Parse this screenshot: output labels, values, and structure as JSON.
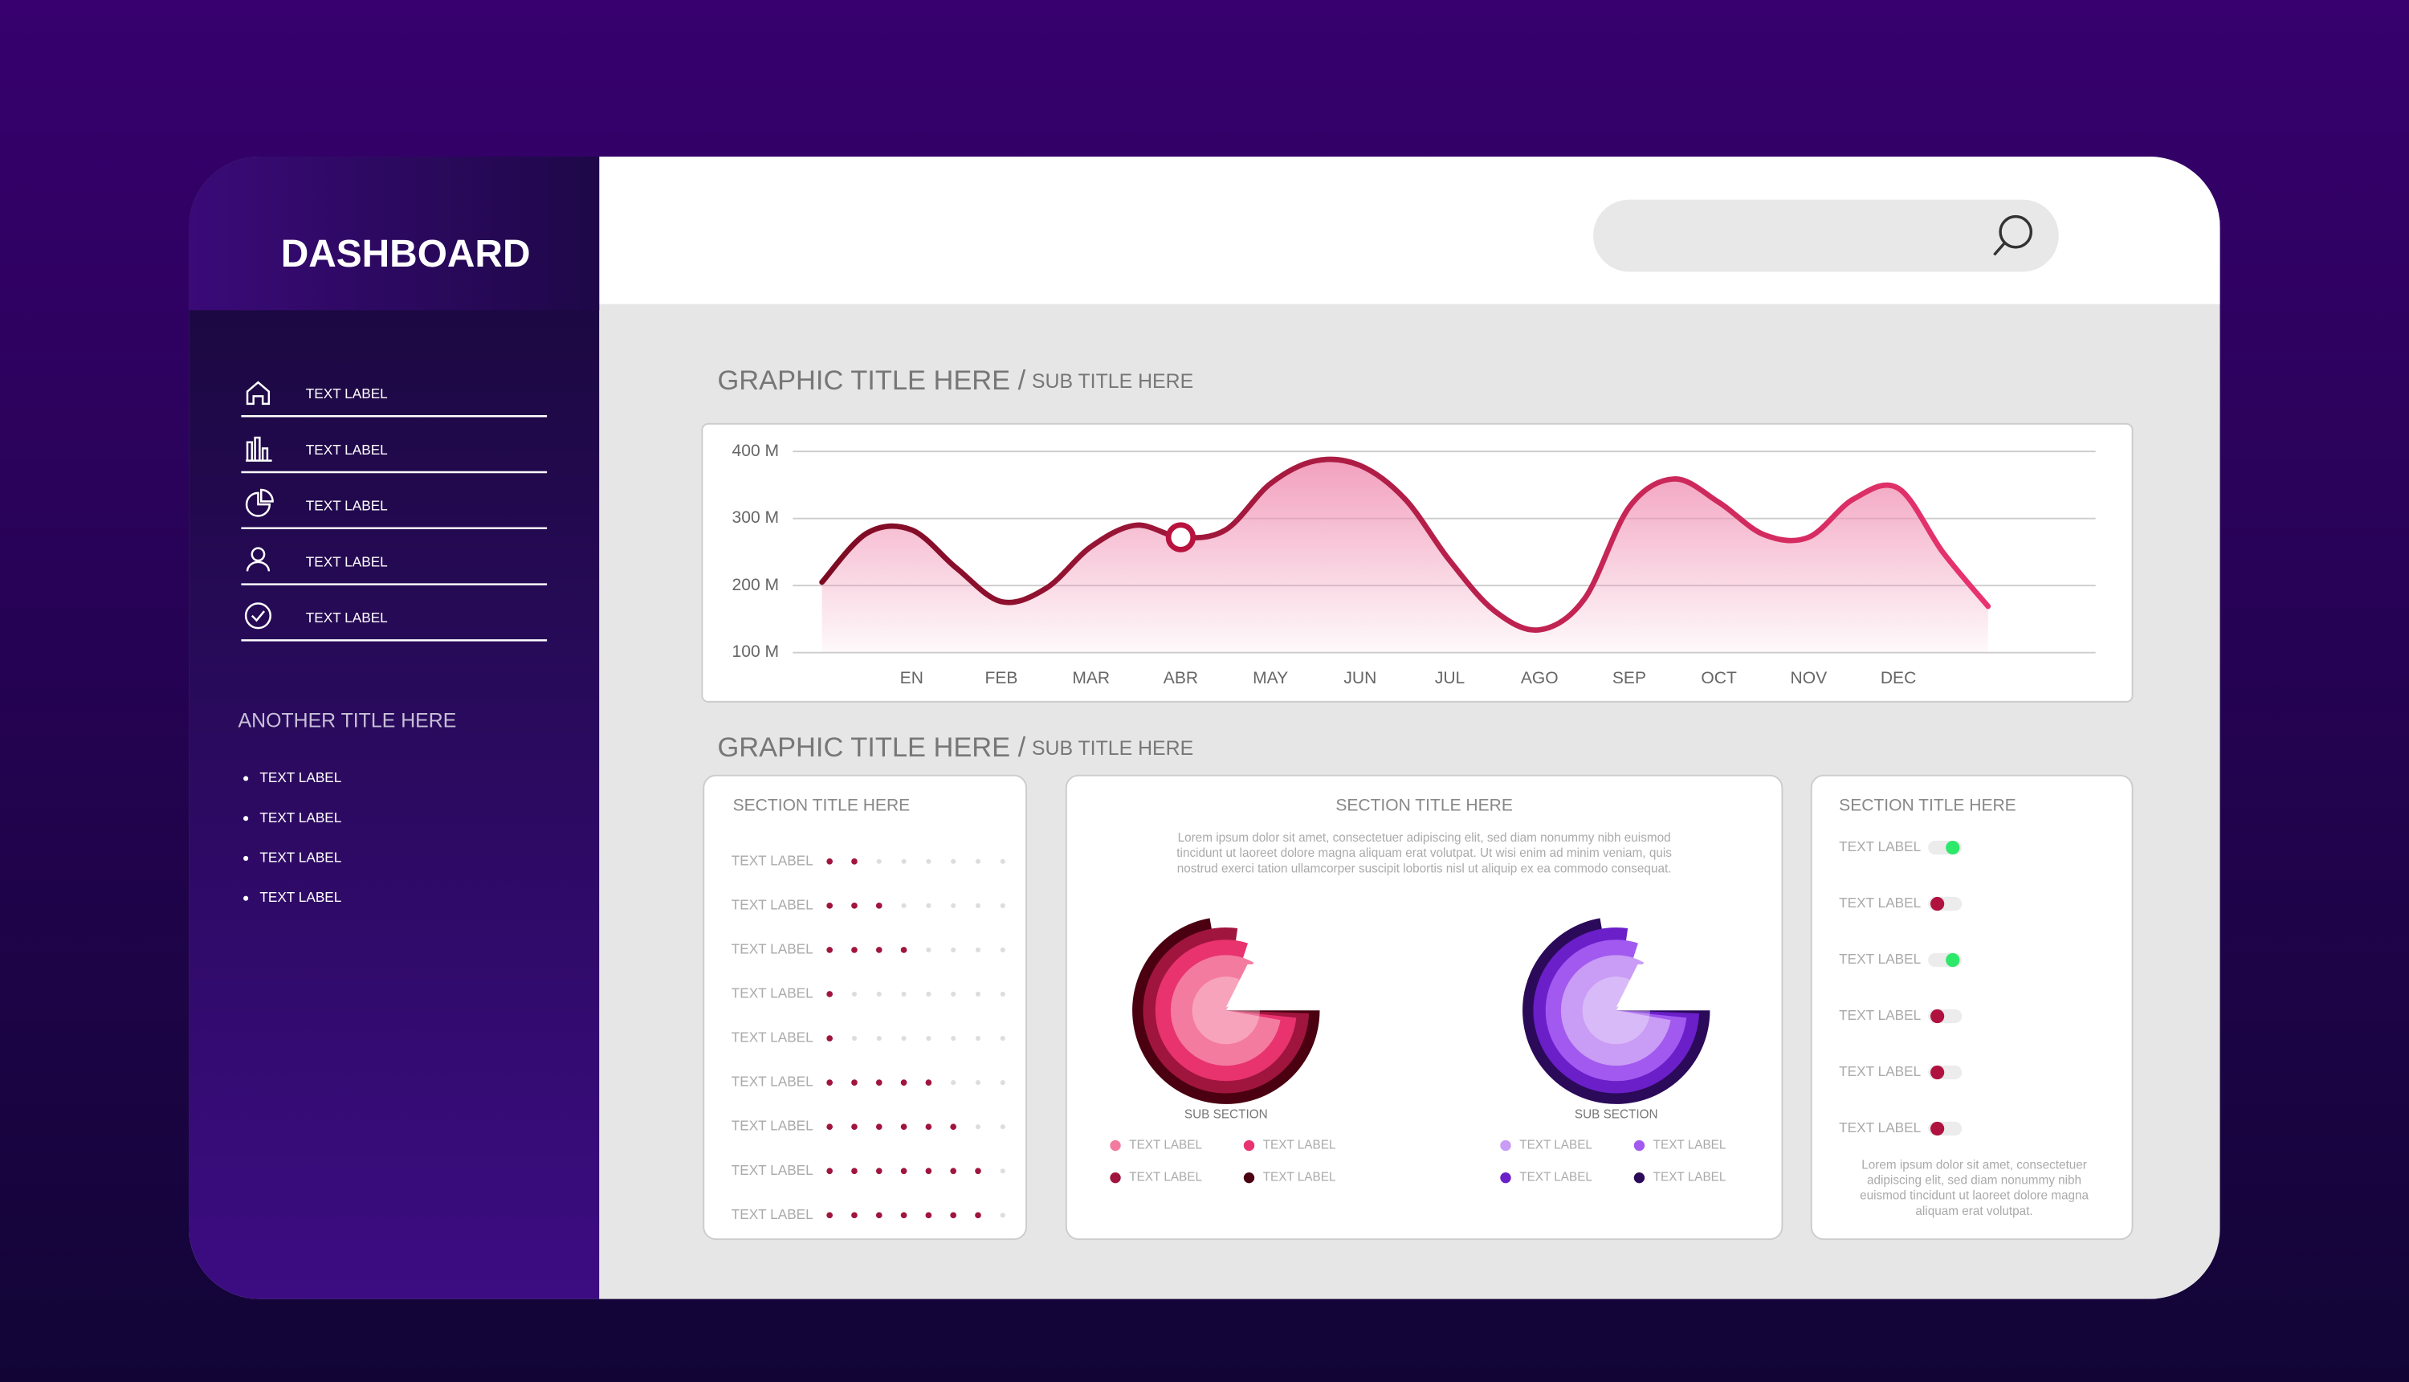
{
  "sidebar": {
    "title": "DASHBOARD",
    "menu": [
      "TEXT LABEL",
      "TEXT LABEL",
      "TEXT LABEL",
      "TEXT LABEL",
      "TEXT LABEL"
    ],
    "section_title": "ANOTHER TITLE HERE",
    "list": [
      "TEXT LABEL",
      "TEXT LABEL",
      "TEXT LABEL",
      "TEXT LABEL"
    ]
  },
  "chart_section": {
    "title": "GRAPHIC TITLE HERE /",
    "subtitle": "SUB TITLE HERE"
  },
  "chart_data": {
    "type": "line",
    "categories": [
      null,
      null,
      "EN",
      null,
      "FEB",
      null,
      "MAR",
      null,
      "ABR",
      null,
      "MAY",
      null,
      "JUN",
      null,
      "JUL",
      null,
      "AGO",
      null,
      "SEP",
      null,
      "OCT",
      null,
      "NOV",
      null,
      "DEC",
      null,
      null
    ],
    "values": [
      205,
      278,
      283,
      226,
      176,
      196,
      258,
      290,
      272,
      283,
      352,
      386,
      379,
      329,
      237,
      162,
      134,
      180,
      317,
      359,
      324,
      276,
      272,
      329,
      345,
      249,
      169
    ],
    "ylim": [
      100,
      400
    ],
    "yticks": [
      {
        "value": 100,
        "label": "100 M"
      },
      {
        "value": 200,
        "label": "200 M"
      },
      {
        "value": 300,
        "label": "300 M"
      },
      {
        "value": 400,
        "label": "400 M"
      }
    ],
    "grid": true,
    "highlight_category": "ABR",
    "line_colors": [
      "#7d0a22",
      "#e8336f"
    ],
    "fill_color": "#f08fb2"
  },
  "panels_section": {
    "title": "GRAPHIC TITLE HERE /",
    "subtitle": "SUB TITLE HERE"
  },
  "dots_panel": {
    "title": "SECTION TITLE HERE",
    "max": 8,
    "filled_color": "#a0153e",
    "empty_color": "#dddddd",
    "rows": [
      {
        "label": "TEXT LABEL",
        "value": 2
      },
      {
        "label": "TEXT LABEL",
        "value": 3
      },
      {
        "label": "TEXT LABEL",
        "value": 4
      },
      {
        "label": "TEXT LABEL",
        "value": 1
      },
      {
        "label": "TEXT LABEL",
        "value": 1
      },
      {
        "label": "TEXT LABEL",
        "value": 5
      },
      {
        "label": "TEXT LABEL",
        "value": 6
      },
      {
        "label": "TEXT LABEL",
        "value": 7
      },
      {
        "label": "TEXT LABEL",
        "value": 7
      }
    ]
  },
  "donut_panel": {
    "title": "SECTION TITLE HERE",
    "body": [
      "Lorem ipsum dolor sit amet, consectetuer adipiscing elit, sed diam nonummy nibh euismod",
      "tincidunt ut laoreet dolore magna aliquam erat volutpat. Ut wisi enim ad minim veniam, quis",
      "nostrud exerci tation ullamcorper suscipit lobortis nisl ut aliquip ex ea commodo consequat."
    ],
    "charts": [
      {
        "subtitle": "SUB SECTION",
        "colors": [
          "#f47ba0",
          "#e8336f",
          "#a0153e",
          "#4a0010"
        ],
        "legend": [
          "TEXT LABEL",
          "TEXT LABEL",
          "TEXT LABEL",
          "TEXT LABEL"
        ]
      },
      {
        "subtitle": "SUB SECTION",
        "colors": [
          "#c99cf5",
          "#a259f0",
          "#6a1fc9",
          "#2b0a5a"
        ],
        "legend": [
          "TEXT LABEL",
          "TEXT LABEL",
          "TEXT LABEL",
          "TEXT LABEL"
        ]
      }
    ]
  },
  "toggle_panel": {
    "title": "SECTION TITLE HERE",
    "on_color": "#2ee86a",
    "off_color": "#b0123f",
    "items": [
      {
        "label": "TEXT LABEL",
        "on": true
      },
      {
        "label": "TEXT LABEL",
        "on": false
      },
      {
        "label": "TEXT LABEL",
        "on": true
      },
      {
        "label": "TEXT LABEL",
        "on": false
      },
      {
        "label": "TEXT LABEL",
        "on": false
      },
      {
        "label": "TEXT LABEL",
        "on": false
      }
    ],
    "body": [
      "Lorem ipsum dolor sit amet, consectetuer",
      "adipiscing elit, sed diam nonummy nibh",
      "euismod tincidunt ut laoreet dolore magna",
      "aliquam erat volutpat."
    ]
  }
}
